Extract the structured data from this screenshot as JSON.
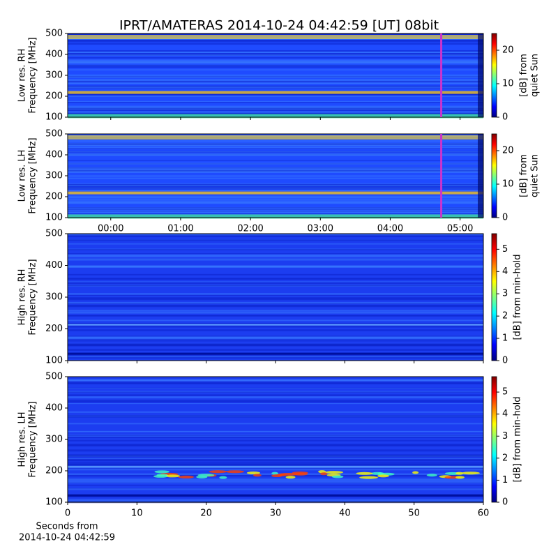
{
  "chart_data": [
    {
      "type": "heatmap",
      "title": "IPRT/AMATERAS 2014-10-24 04:42:59 [UT]   08bit",
      "ylabel": [
        "Low res. RH",
        "Frequency [MHz]"
      ],
      "ylim": [
        100,
        500
      ],
      "yticks": [
        100,
        200,
        300,
        400,
        500
      ],
      "xlim": [
        -37,
        320
      ],
      "xticks": [
        0,
        60,
        120,
        180,
        240,
        300
      ],
      "clim": [
        0,
        25
      ],
      "cticks": [
        0,
        10,
        20
      ],
      "clabel": [
        "[dB] from",
        "quiet Sun"
      ],
      "colormap": "jet",
      "marker": 283.8,
      "marker_color": "#cc33cc"
    },
    {
      "type": "heatmap",
      "ylabel": [
        "Low res. LH",
        "Frequency [MHz]"
      ],
      "ylim": [
        100,
        500
      ],
      "yticks": [
        100,
        200,
        300,
        400,
        500
      ],
      "xlim": [
        -37,
        320
      ],
      "xticks": [
        {
          "value": 0,
          "label": "00:00"
        },
        {
          "value": 60,
          "label": "01:00"
        },
        {
          "value": 120,
          "label": "02:00"
        },
        {
          "value": 180,
          "label": "03:00"
        },
        {
          "value": 240,
          "label": "04:00"
        },
        {
          "value": 300,
          "label": "05:00"
        }
      ],
      "clim": [
        0,
        25
      ],
      "cticks": [
        0,
        10,
        20
      ],
      "clabel": [
        "[dB] from",
        "quiet Sun"
      ],
      "colormap": "jet",
      "marker": 283.8,
      "marker_color": "#cc33cc"
    },
    {
      "type": "heatmap",
      "ylabel": [
        "High res. RH",
        "Frequency [MHz]"
      ],
      "ylim": [
        100,
        500
      ],
      "yticks": [
        100,
        200,
        300,
        400,
        500
      ],
      "xlim": [
        0,
        60
      ],
      "xticks": [
        0,
        10,
        20,
        30,
        40,
        50,
        60
      ],
      "clim": [
        0,
        5.7
      ],
      "cticks": [
        0,
        1,
        2,
        3,
        4,
        5
      ],
      "clabel": [
        "[dB] from min-hold"
      ],
      "colormap": "jet"
    },
    {
      "type": "heatmap",
      "ylabel": [
        "High res. LH",
        "Frequency [MHz]"
      ],
      "ylim": [
        100,
        500
      ],
      "yticks": [
        100,
        200,
        300,
        400,
        500
      ],
      "xlim": [
        0,
        60
      ],
      "xticks": [
        0,
        10,
        20,
        30,
        40,
        50,
        60
      ],
      "xlabel": [
        "Seconds from",
        "2014-10-24 04:42:59"
      ],
      "clim": [
        0,
        5.7
      ],
      "cticks": [
        0,
        1,
        2,
        3,
        4,
        5
      ],
      "clabel": [
        "[dB] from min-hold"
      ],
      "colormap": "jet"
    }
  ]
}
